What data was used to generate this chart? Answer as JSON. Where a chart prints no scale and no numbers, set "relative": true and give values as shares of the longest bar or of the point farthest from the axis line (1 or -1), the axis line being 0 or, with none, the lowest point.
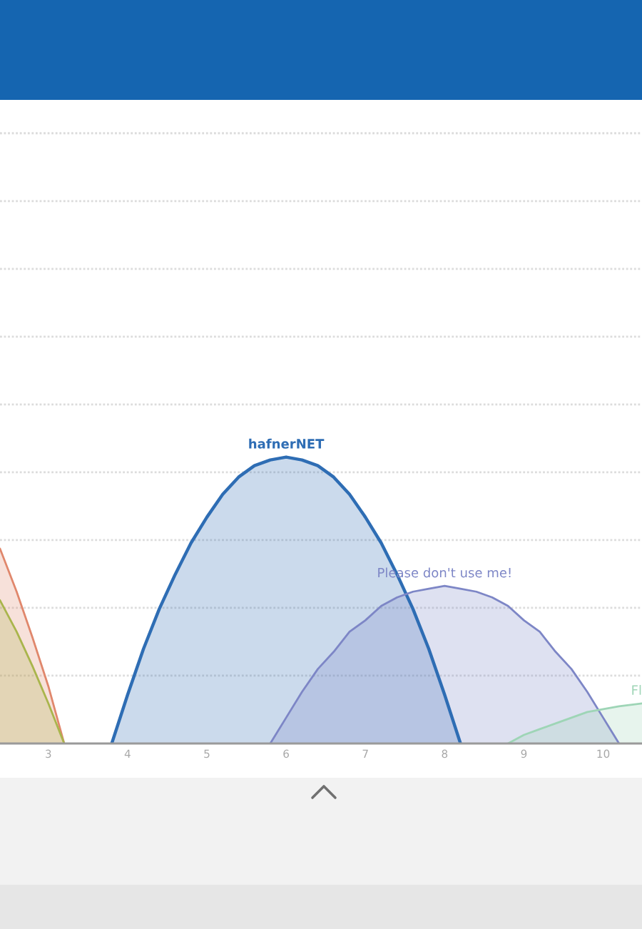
{
  "chart_data": {
    "type": "area",
    "relative": true,
    "xlim": [
      2.39,
      10.49
    ],
    "xticks": [
      3,
      4,
      5,
      6,
      7,
      8,
      9,
      10
    ],
    "tick_labels": "x",
    "grid": "y",
    "legend": false,
    "series": [
      {
        "color": "#e0876c",
        "x": [
          2.39,
          2.6,
          2.8,
          3.0,
          3.2
        ],
        "values": [
          0.68,
          0.53,
          0.37,
          0.2,
          0
        ]
      },
      {
        "color": "#a9b54c",
        "x": [
          2.39,
          2.6,
          2.8,
          3.0,
          3.2
        ],
        "values": [
          0.5,
          0.39,
          0.27,
          0.14,
          0
        ]
      },
      {
        "name": "hafnerNET",
        "color": "#2e6db4",
        "x": [
          3.8,
          4.0,
          4.2,
          4.4,
          4.6,
          4.8,
          5.0,
          5.2,
          5.4,
          5.6,
          5.8,
          6.0,
          6.2,
          6.4,
          6.6,
          6.8,
          7.0,
          7.2,
          7.4,
          7.6,
          7.8,
          8.0,
          8.2
        ],
        "values": [
          0,
          0.17,
          0.33,
          0.47,
          0.59,
          0.7,
          0.79,
          0.87,
          0.93,
          0.97,
          0.99,
          1,
          0.99,
          0.97,
          0.93,
          0.87,
          0.79,
          0.7,
          0.59,
          0.47,
          0.33,
          0.17,
          0
        ]
      },
      {
        "name": "Please don't use me!",
        "color": "#7d86c6",
        "x": [
          5.8,
          6.0,
          6.2,
          6.4,
          6.6,
          6.8,
          7.0,
          7.2,
          7.4,
          7.6,
          7.8,
          8.0,
          8.2,
          8.4,
          8.6,
          8.8,
          9.0,
          9.2,
          9.4,
          9.6,
          9.8,
          10.0,
          10.2
        ],
        "values": [
          0,
          0.09,
          0.18,
          0.26,
          0.32,
          0.39,
          0.43,
          0.48,
          0.51,
          0.53,
          0.54,
          0.55,
          0.54,
          0.53,
          0.51,
          0.48,
          0.43,
          0.39,
          0.32,
          0.26,
          0.18,
          0.09,
          0
        ]
      },
      {
        "name": "Fl",
        "color": "#9ed5b6",
        "x": [
          8.8,
          9.0,
          9.2,
          9.4,
          9.6,
          9.8,
          10.0,
          10.2,
          10.49
        ],
        "values": [
          0,
          0.03,
          0.05,
          0.07,
          0.09,
          0.11,
          0.12,
          0.13,
          0.14
        ]
      }
    ]
  }
}
